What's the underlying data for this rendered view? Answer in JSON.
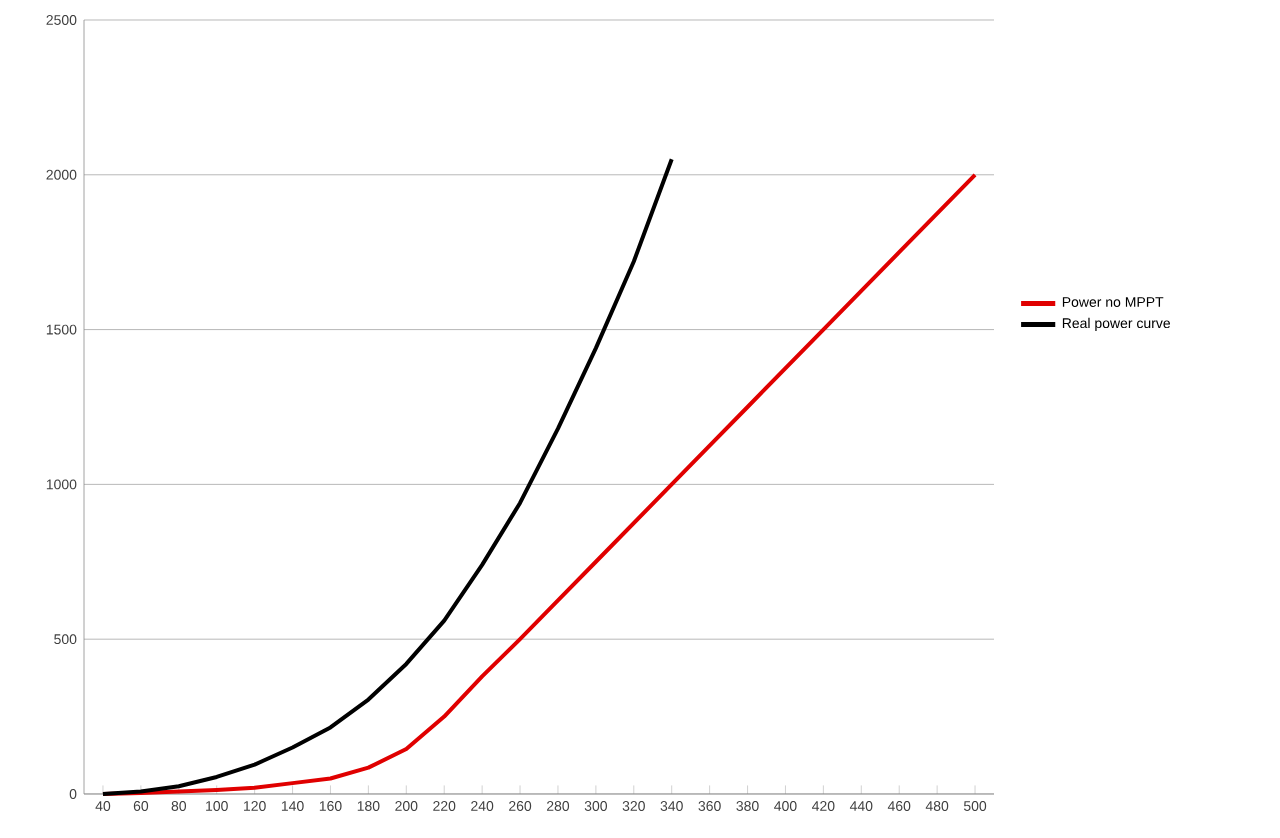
{
  "chart_data": {
    "type": "line",
    "categories": [
      "40",
      "60",
      "80",
      "100",
      "120",
      "140",
      "160",
      "180",
      "200",
      "220",
      "240",
      "260",
      "280",
      "300",
      "320",
      "340",
      "360",
      "380",
      "400",
      "420",
      "440",
      "460",
      "480",
      "500"
    ],
    "series": [
      {
        "name": "Power no MPPT",
        "color": "#e00000",
        "values": [
          0,
          3,
          8,
          13,
          20,
          35,
          50,
          85,
          145,
          250,
          380,
          500,
          625,
          750,
          875,
          1000,
          1125,
          1250,
          1375,
          1500,
          1625,
          1750,
          1875,
          2000
        ]
      },
      {
        "name": "Real power curve",
        "color": "#000000",
        "values": [
          0,
          8,
          25,
          55,
          95,
          150,
          215,
          305,
          420,
          560,
          740,
          940,
          1180,
          1440,
          1720,
          2050,
          null,
          null,
          null,
          null,
          null,
          null,
          null,
          null
        ]
      }
    ],
    "ylim": [
      0,
      2500
    ],
    "yticks": [
      0,
      500,
      1000,
      1500,
      2000,
      2500
    ],
    "grid": "y",
    "legend": "right",
    "marker": "none",
    "line_style": "solid"
  }
}
